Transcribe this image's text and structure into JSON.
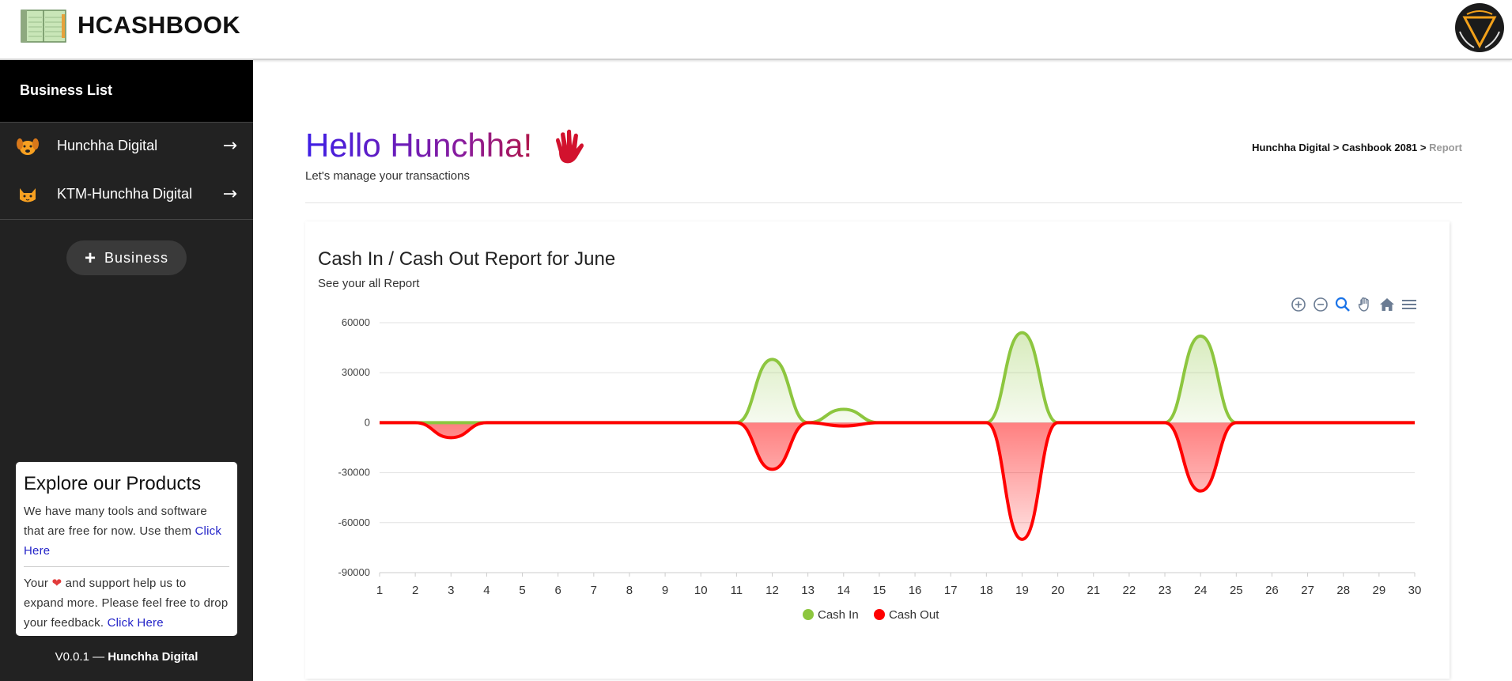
{
  "app": {
    "brand": "HCASHBOOK"
  },
  "sidebar": {
    "heading": "Business List",
    "items": [
      {
        "label": "Hunchha Digital",
        "icon": "dog-icon"
      },
      {
        "label": "KTM-Hunchha Digital",
        "icon": "cat-icon"
      }
    ],
    "add_label": "Business",
    "promo": {
      "title": "Explore our Products",
      "text1": "We have many tools and software that are free for now. Use them ",
      "link1": "Click Here",
      "text2a": "Your ",
      "text2b": " and support help us to expand more. Please feel free to drop your feedback. ",
      "link2": "Click Here"
    },
    "version": "V0.0.1 — ",
    "version_owner": "Hunchha Digital"
  },
  "main": {
    "greeting": "Hello Hunchha!",
    "subtitle": "Let's manage your transactions",
    "breadcrumb": {
      "b1": "Hunchha Digital",
      "sep": " > ",
      "b2": "Cashbook 2081",
      "current": "Report"
    }
  },
  "report": {
    "title": "Cash In / Cash Out Report for June",
    "subtitle": "See your all Report"
  },
  "colors": {
    "cash_in": "#8dc63f",
    "cash_out": "#ff0000",
    "accent": "#3d1ee6"
  },
  "chart_data": {
    "type": "area",
    "x": [
      1,
      2,
      3,
      4,
      5,
      6,
      7,
      8,
      9,
      10,
      11,
      12,
      13,
      14,
      15,
      16,
      17,
      18,
      19,
      20,
      21,
      22,
      23,
      24,
      25,
      26,
      27,
      28,
      29,
      30
    ],
    "ylim": [
      -90000,
      60000
    ],
    "yticks": [
      60000,
      30000,
      0,
      -30000,
      -60000,
      -90000
    ],
    "grid": true,
    "legend": "bottom",
    "series": [
      {
        "name": "Cash In",
        "color": "#8dc63f",
        "values": [
          0,
          0,
          0,
          0,
          0,
          0,
          0,
          0,
          0,
          0,
          0,
          38000,
          0,
          8000,
          0,
          0,
          0,
          0,
          54000,
          0,
          0,
          0,
          0,
          52000,
          0,
          0,
          0,
          0,
          0,
          0
        ]
      },
      {
        "name": "Cash Out",
        "color": "#ff0000",
        "values": [
          0,
          0,
          -9000,
          0,
          0,
          0,
          0,
          0,
          0,
          0,
          0,
          -28000,
          0,
          -2000,
          0,
          0,
          0,
          0,
          -70000,
          0,
          0,
          0,
          0,
          -41000,
          0,
          0,
          0,
          0,
          0,
          0
        ]
      }
    ]
  }
}
